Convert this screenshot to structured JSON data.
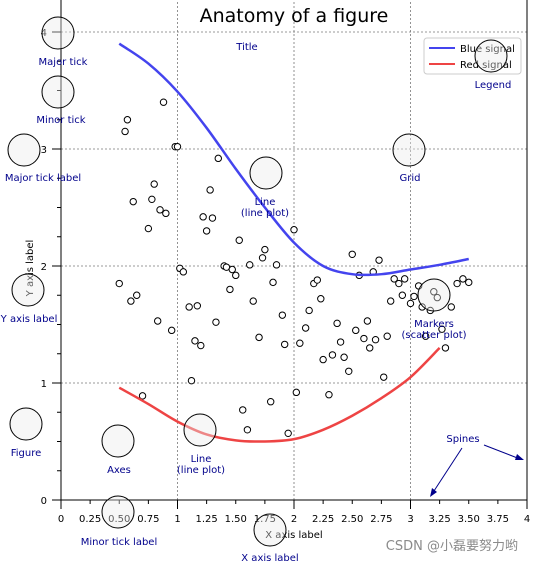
{
  "chart_data": {
    "type": "line",
    "title": "Anatomy of a figure",
    "xlabel": "X axis label",
    "ylabel": "Y axis label",
    "xlim": [
      0,
      4
    ],
    "ylim": [
      0,
      4
    ],
    "x_major_ticks": [
      0,
      1,
      2,
      3,
      4
    ],
    "x_major_tick_labels": [
      "0",
      "1",
      "2",
      "3",
      "4"
    ],
    "x_minor_tick_labels": [
      "0.25",
      "0.50",
      "0.75",
      "1.25",
      "1.50",
      "1.75",
      "2.25",
      "2.50",
      "2.75",
      "3.25",
      "3.50",
      "3.75"
    ],
    "y_major_ticks": [
      0,
      1,
      2,
      3,
      4
    ],
    "y_major_tick_labels": [
      "0",
      "1",
      "2",
      "3",
      "4"
    ],
    "grid": true,
    "legend_position": "top-right",
    "series": [
      {
        "name": "Blue signal",
        "color": "#4444ee",
        "x": [
          0.5,
          0.75,
          1.0,
          1.25,
          1.5,
          1.75,
          2.0,
          2.25,
          2.5,
          2.75,
          3.0,
          3.25,
          3.5
        ],
        "values": [
          3.9,
          3.73,
          3.49,
          3.18,
          2.83,
          2.5,
          2.2,
          2.0,
          1.93,
          1.93,
          1.97,
          2.01,
          2.06
        ]
      },
      {
        "name": "Red signal",
        "color": "#ee4444",
        "x": [
          0.5,
          0.75,
          1.0,
          1.25,
          1.5,
          1.75,
          2.0,
          2.25,
          2.5,
          2.75,
          3.0,
          3.25
        ],
        "values": [
          0.96,
          0.82,
          0.67,
          0.56,
          0.51,
          0.5,
          0.52,
          0.6,
          0.72,
          0.87,
          1.05,
          1.3
        ]
      }
    ],
    "scatter": {
      "marker": "circle",
      "x": [
        0.5,
        0.55,
        0.57,
        0.6,
        0.62,
        0.65,
        0.7,
        0.75,
        0.78,
        0.8,
        0.83,
        0.85,
        0.88,
        0.9,
        0.95,
        0.98,
        1.0,
        1.02,
        1.05,
        1.1,
        1.12,
        1.15,
        1.17,
        1.2,
        1.22,
        1.25,
        1.28,
        1.3,
        1.33,
        1.35,
        1.4,
        1.42,
        1.45,
        1.47,
        1.5,
        1.53,
        1.56,
        1.6,
        1.62,
        1.65,
        1.7,
        1.73,
        1.75,
        1.8,
        1.82,
        1.85,
        1.9,
        1.92,
        1.95,
        2.0,
        2.02,
        2.05,
        2.1,
        2.13,
        2.17,
        2.2,
        2.23,
        2.25,
        2.3,
        2.33,
        2.37,
        2.4,
        2.43,
        2.47,
        2.5,
        2.53,
        2.56,
        2.6,
        2.63,
        2.65,
        2.68,
        2.7,
        2.73,
        2.77,
        2.8,
        2.83,
        2.86,
        2.9,
        2.93,
        2.95,
        3.0,
        3.03,
        3.07,
        3.1,
        3.13,
        3.17,
        3.2,
        3.23,
        3.27,
        3.3,
        3.35,
        3.4,
        3.45,
        3.5
      ],
      "y": [
        1.85,
        3.15,
        3.25,
        1.7,
        2.55,
        1.75,
        0.89,
        2.32,
        2.57,
        2.7,
        1.53,
        2.48,
        3.4,
        2.45,
        1.45,
        3.02,
        3.02,
        1.98,
        1.95,
        1.65,
        1.02,
        1.36,
        1.66,
        1.32,
        2.42,
        2.3,
        2.65,
        2.41,
        1.52,
        2.92,
        2.0,
        1.99,
        1.8,
        1.97,
        1.92,
        2.22,
        0.77,
        0.6,
        2.01,
        1.7,
        1.39,
        2.07,
        2.14,
        0.84,
        1.86,
        2.01,
        1.58,
        1.33,
        0.57,
        2.31,
        0.92,
        1.34,
        1.47,
        1.62,
        1.85,
        1.88,
        1.72,
        1.2,
        0.9,
        1.24,
        1.51,
        1.35,
        1.22,
        1.1,
        2.1,
        1.45,
        1.92,
        1.38,
        1.53,
        1.3,
        1.95,
        1.37,
        2.05,
        1.05,
        1.4,
        1.7,
        1.89,
        1.85,
        1.75,
        1.89,
        1.68,
        1.74,
        1.83,
        1.65,
        1.4,
        1.62,
        1.78,
        1.73,
        1.46,
        1.3,
        1.65,
        1.85,
        1.89,
        1.86
      ]
    },
    "annotations": [
      "Major tick",
      "Minor tick",
      "Major tick label",
      "Y axis label",
      "Figure",
      "Axes",
      "Title",
      "Line\n(line plot)",
      "Grid",
      "Legend",
      "Markers\n(scatter plot)",
      "Line\n(line plot)",
      "Spines",
      "X axis label",
      "Minor tick label"
    ]
  },
  "ui": {
    "watermark": "CSDN @小磊要努力哟",
    "y_axis_label": "Y axis label",
    "x_axis_label": "X axis label",
    "minor_tick_label_sample": "0.50"
  }
}
